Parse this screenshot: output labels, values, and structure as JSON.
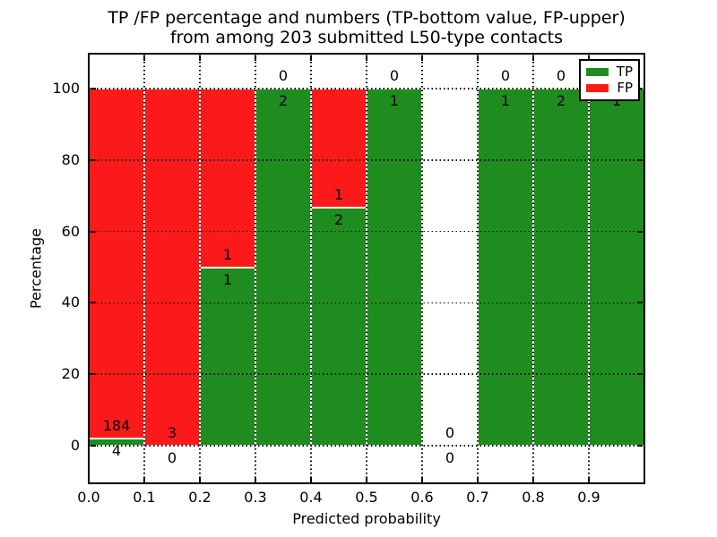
{
  "title": {
    "line1": "TP /FP percentage and numbers (TP-bottom value, FP-upper)",
    "line2": "from among 203 submitted L50-type contacts"
  },
  "axes": {
    "xlabel": "Predicted probability",
    "ylabel": "Percentage",
    "x_tick_labels": [
      "0.0",
      "0.1",
      "0.2",
      "0.3",
      "0.4",
      "0.5",
      "0.6",
      "0.7",
      "0.8",
      "0.9"
    ],
    "y_tick_labels": [
      "0",
      "20",
      "40",
      "60",
      "80",
      "100"
    ]
  },
  "legend": {
    "items": [
      {
        "label": "TP",
        "color": "#1f8c1f"
      },
      {
        "label": "FP",
        "color": "#fa1a1a"
      }
    ]
  },
  "chart_data": {
    "type": "bar",
    "stacked": true,
    "normalized_to_percent": true,
    "title": "TP /FP percentage and numbers (TP-bottom value, FP-upper) from among 203 submitted L50-type contacts",
    "xlabel": "Predicted probability",
    "ylabel": "Percentage",
    "xlim": [
      0.0,
      1.0
    ],
    "ylim": [
      -10,
      110
    ],
    "x_ticks": [
      0.0,
      0.1,
      0.2,
      0.3,
      0.4,
      0.5,
      0.6,
      0.7,
      0.8,
      0.9
    ],
    "y_ticks": [
      0,
      20,
      40,
      60,
      80,
      100
    ],
    "grid": true,
    "legend_position": "upper right",
    "bin_edges": [
      0.0,
      0.1,
      0.2,
      0.3,
      0.4,
      0.5,
      0.6,
      0.7,
      0.8,
      0.9,
      1.0
    ],
    "total_contacts": 203,
    "series": [
      {
        "name": "TP",
        "color": "#1f8c1f",
        "counts": [
          4,
          0,
          1,
          2,
          2,
          1,
          0,
          1,
          2,
          1
        ],
        "percent": [
          2.1,
          0.0,
          50.0,
          100.0,
          66.7,
          100.0,
          null,
          100.0,
          100.0,
          100.0
        ]
      },
      {
        "name": "FP",
        "color": "#fa1a1a",
        "counts": [
          184,
          3,
          1,
          0,
          1,
          0,
          0,
          0,
          0,
          0
        ],
        "percent": [
          97.9,
          100.0,
          50.0,
          0.0,
          33.3,
          0.0,
          null,
          0.0,
          0.0,
          0.0
        ]
      }
    ]
  }
}
